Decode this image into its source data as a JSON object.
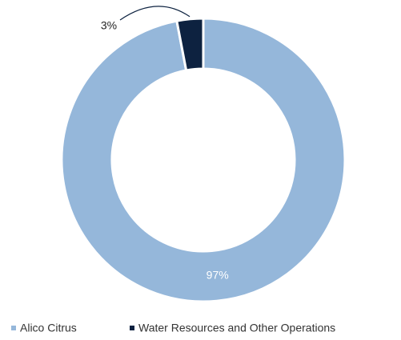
{
  "chart_data": {
    "type": "donut",
    "categories": [
      "Alico Citrus",
      "Water Resources and Other Operations"
    ],
    "values": [
      97,
      3
    ],
    "value_labels": [
      "97%",
      "3%"
    ],
    "colors": [
      "#95b7da",
      "#0d2240"
    ],
    "legend": "bottom"
  }
}
